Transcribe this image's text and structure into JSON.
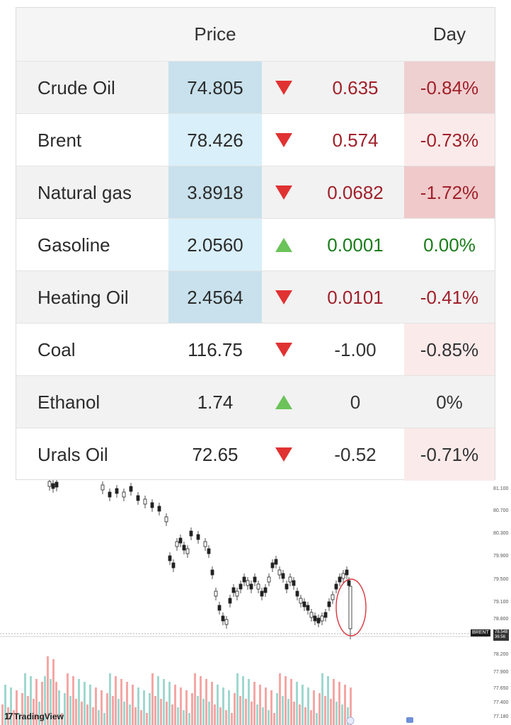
{
  "table": {
    "header": {
      "price": "Price",
      "day": "Day"
    },
    "rows": [
      {
        "name": "Crude Oil",
        "price": "74.805",
        "direction": "down",
        "change": "0.635",
        "pct": "-0.84%",
        "tone": "neg"
      },
      {
        "name": "Brent",
        "price": "78.426",
        "direction": "down",
        "change": "0.574",
        "pct": "-0.73%",
        "tone": "neg"
      },
      {
        "name": "Natural gas",
        "price": "3.8918",
        "direction": "down",
        "change": "0.0682",
        "pct": "-1.72%",
        "tone": "neg"
      },
      {
        "name": "Gasoline",
        "price": "2.0560",
        "direction": "up",
        "change": "0.0001",
        "pct": "0.00%",
        "tone": "pos"
      },
      {
        "name": "Heating Oil",
        "price": "2.4564",
        "direction": "down",
        "change": "0.0101",
        "pct": "-0.41%",
        "tone": "neg"
      },
      {
        "name": "Coal",
        "price": "116.75",
        "direction": "down",
        "change": "-1.00",
        "pct": "-0.85%",
        "tone": "neu"
      },
      {
        "name": "Ethanol",
        "price": "1.74",
        "direction": "up",
        "change": "0",
        "pct": "0%",
        "tone": "neu"
      },
      {
        "name": "Urals Oil",
        "price": "72.65",
        "direction": "down",
        "change": "-0.52",
        "pct": "-0.71%",
        "tone": "neu"
      }
    ]
  },
  "chart": {
    "price_axis": [
      "81.100",
      "80.700",
      "80.300",
      "79.900",
      "79.500",
      "79.100",
      "78.800",
      "78.200",
      "77.900",
      "77.650",
      "77.400",
      "77.180"
    ],
    "symbol_badge": "BRENT",
    "last_price": "78.548",
    "countdown": "36:56",
    "brand": "TradingView",
    "colors": {
      "up": "#26a69a",
      "down": "#ef5350",
      "candle": "#222222",
      "annotation": "#d9363e"
    }
  }
}
